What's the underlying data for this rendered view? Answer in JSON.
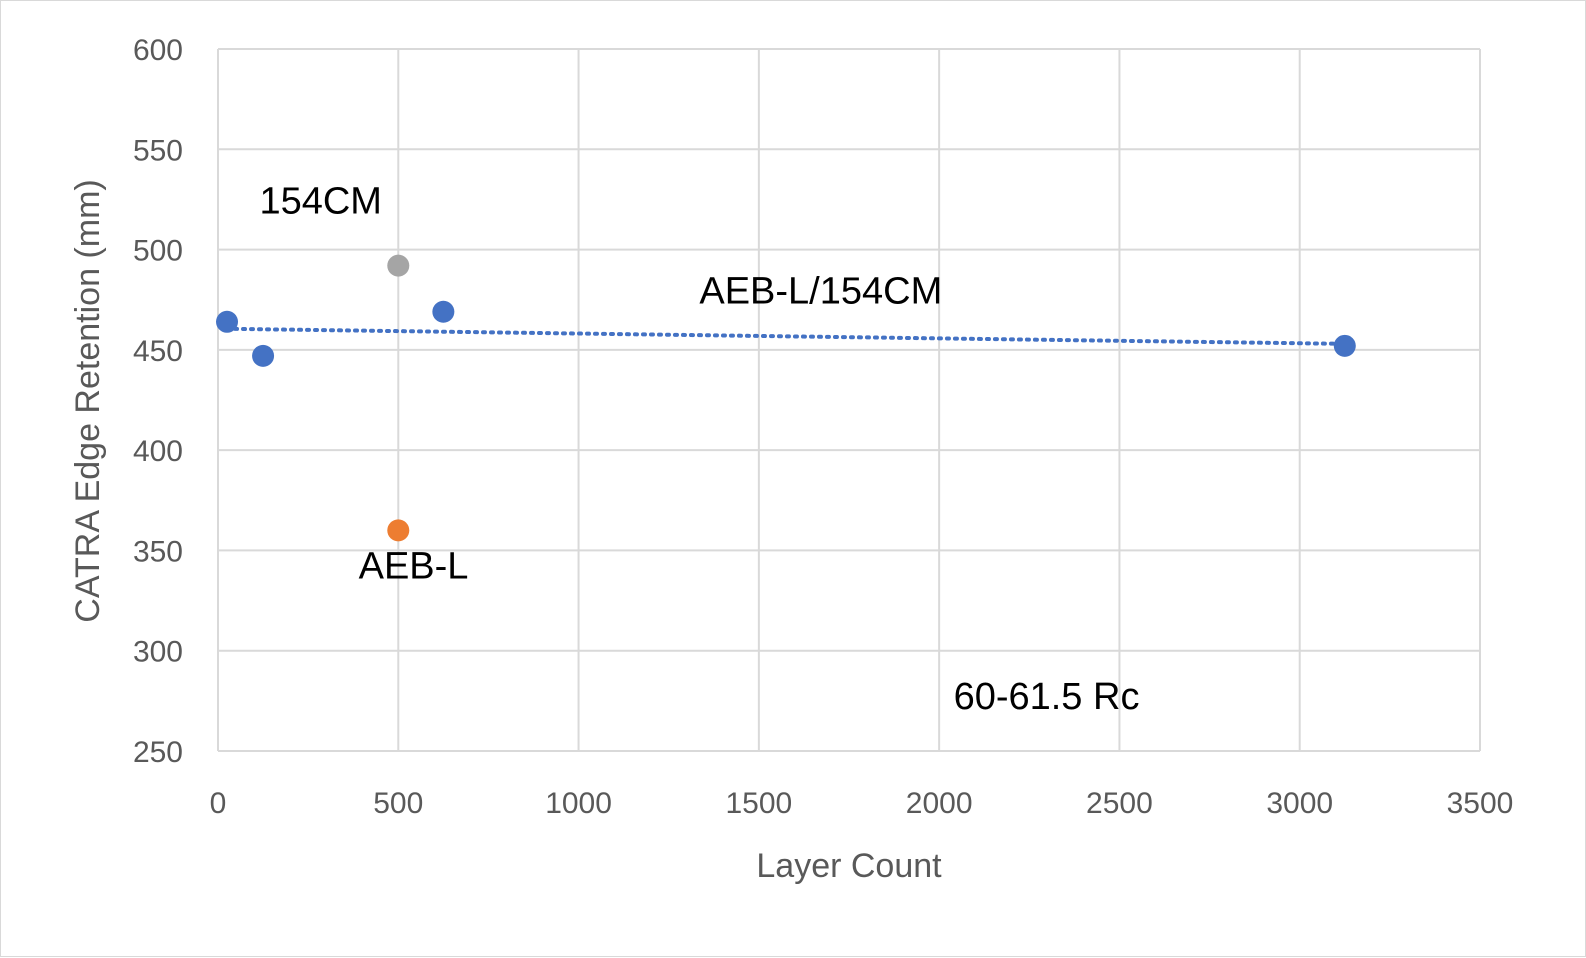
{
  "chart_data": {
    "type": "scatter",
    "title": "",
    "xlabel": "Layer Count",
    "ylabel": "CATRA Edge Retention (mm)",
    "xlim": [
      0,
      3500
    ],
    "ylim": [
      250,
      600
    ],
    "x_ticks": [
      0,
      500,
      1000,
      1500,
      2000,
      2500,
      3000,
      3500
    ],
    "y_ticks": [
      250,
      300,
      350,
      400,
      450,
      500,
      550,
      600
    ],
    "grid": true,
    "legend": "none",
    "series": [
      {
        "color": "#4472c4",
        "points": [
          {
            "x": 25,
            "y": 464
          },
          {
            "x": 125,
            "y": 447
          },
          {
            "x": 625,
            "y": 469
          },
          {
            "x": 3125,
            "y": 452
          }
        ],
        "trendline": {
          "type": "linear",
          "style": "dotted",
          "from": {
            "x": 25,
            "y": 460.5
          },
          "to": {
            "x": 3125,
            "y": 453
          }
        }
      },
      {
        "color": "#a5a5a5",
        "points": [
          {
            "x": 500,
            "y": 492
          }
        ]
      },
      {
        "color": "#ed7d31",
        "points": [
          {
            "x": 500,
            "y": 360
          }
        ]
      }
    ],
    "annotations": [
      {
        "text": "154CM",
        "x": 115,
        "y": 518
      },
      {
        "text": "AEB-L/154CM",
        "x": 1335,
        "y": 473
      },
      {
        "text": "AEB-L",
        "x": 390,
        "y": 336
      },
      {
        "text": "60-61.5 Rc",
        "x": 2040,
        "y": 271
      }
    ]
  }
}
